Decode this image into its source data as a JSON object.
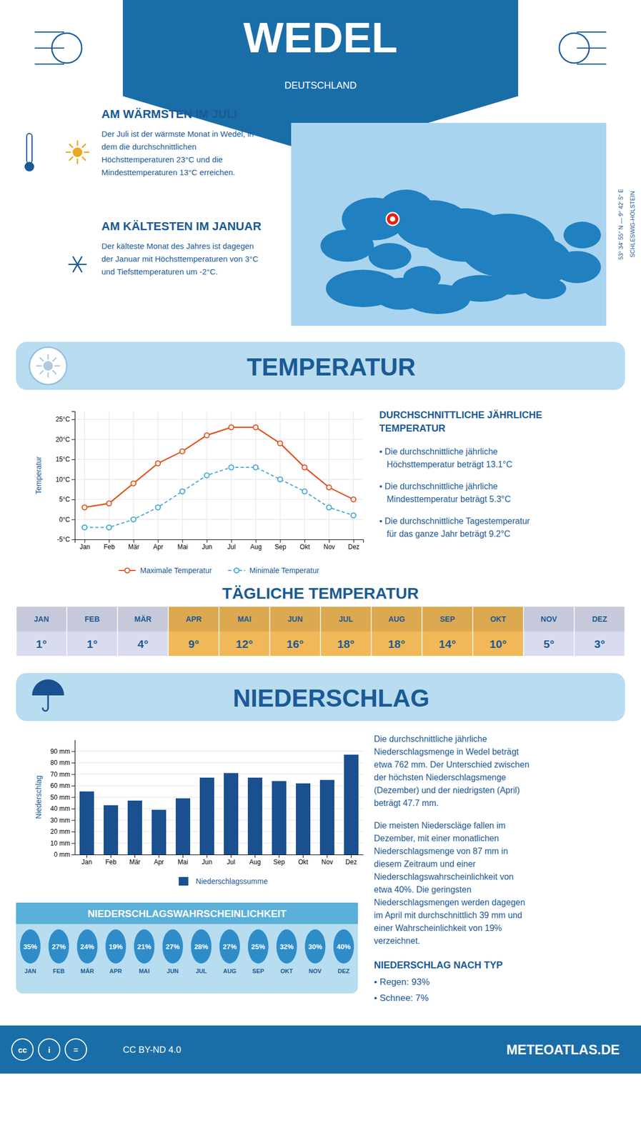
{
  "chart_data": [
    {
      "type": "map",
      "title": "WEDEL",
      "subtitle": "DEUTSCHLAND",
      "annotations": [
        "AM WÄRMSTEN IM JULI",
        "Der Juli ist der wärmste Monat in Wedel, in",
        "dem die durchschnittlichen",
        "Höchsttemperaturen 23°C und die",
        "Mindesttemperaturen 13°C erreichen.",
        "AM KÄLTESTEN IM JANUAR",
        "Der kälteste Monat des Jahres ist dagegen",
        "der Januar mit Höchsttemperaturen von 3°C",
        "und Tiefsttemperaturen um -2°C.",
        "53° 34ʹ 55ʺ N — 9° 42ʹ 5ʺ E",
        "SCHLESWIG-HOLSTEIN",
        "cc",
        "i",
        "=",
        "CC BY-ND 4.0",
        "METEOATLAS.DE"
      ]
    },
    {
      "type": "line",
      "title": "TEMPERATUR",
      "categories": [
        "Jan",
        "Feb",
        "Mär",
        "Apr",
        "Mai",
        "Jun",
        "Jul",
        "Aug",
        "Sep",
        "Okt",
        "Nov",
        "Dez"
      ],
      "series": [
        {
          "name": "Maximale Temperatur",
          "color": "#e05520",
          "marker": "circle",
          "line_style": "solid",
          "values": [
            3,
            4,
            9,
            14,
            17,
            21,
            23,
            23,
            19,
            13,
            8,
            5
          ]
        },
        {
          "name": "Minimale Temperatur",
          "color": "#40aad0",
          "marker": "circle",
          "line_style": "dashed",
          "values": [
            -2,
            -2,
            0,
            3,
            7,
            11,
            13,
            13,
            10,
            7,
            3,
            1
          ]
        }
      ],
      "ylabel": "Temperatur",
      "ylim": [
        -5,
        27
      ],
      "yticks": [
        {
          "value": -5,
          "label": "-5°C"
        },
        {
          "value": 0,
          "label": "0°C"
        },
        {
          "value": 5,
          "label": "5°C"
        },
        {
          "value": 10,
          "label": "10°C"
        },
        {
          "value": 15,
          "label": "15°C"
        },
        {
          "value": 20,
          "label": "20°C"
        },
        {
          "value": 25,
          "label": "25°C"
        }
      ],
      "grid": true,
      "legend": "bottom",
      "annotations": [
        "DURCHSCHNITTLICHE JÄHRLICHE",
        "TEMPERATUR",
        "• Die durchschnittliche jährliche",
        "Höchsttemperatur beträgt 13.1°C",
        "• Die durchschnittliche jährliche",
        "Mindesttemperatur beträgt 5.3°C",
        "• Die durchschnittliche Tagestemperatur",
        "für das ganze Jahr beträgt 9.2°C"
      ]
    },
    {
      "type": "table",
      "title": "TÄGLICHE TEMPERATUR",
      "categories": [
        "JAN",
        "FEB",
        "MÄR",
        "APR",
        "MAI",
        "JUN",
        "JUL",
        "AUG",
        "SEP",
        "OKT",
        "NOV",
        "DEZ"
      ],
      "values": [
        1,
        1,
        4,
        9,
        12,
        16,
        18,
        18,
        14,
        10,
        5,
        3
      ],
      "value_labels": [
        "1°",
        "1°",
        "4°",
        "9°",
        "12°",
        "16°",
        "18°",
        "18°",
        "14°",
        "10°",
        "5°",
        "3°"
      ],
      "colors": [
        "#d8dcee",
        "#d8dcee",
        "#d8dcee",
        "#f0b858",
        "#f0b858",
        "#f0b858",
        "#f0b858",
        "#f0b858",
        "#f0b858",
        "#f0b858",
        "#d8dcee",
        "#d8dcee"
      ],
      "data_labels": true
    },
    {
      "type": "bar",
      "title": "NIEDERSCHLAG",
      "categories": [
        "Jan",
        "Feb",
        "Mär",
        "Apr",
        "Mai",
        "Jun",
        "Jul",
        "Aug",
        "Sep",
        "Okt",
        "Nov",
        "Dez"
      ],
      "series": [
        {
          "name": "Niederschlagssumme",
          "color": "#1a5090",
          "values": [
            55,
            43,
            47,
            39,
            49,
            67,
            71,
            67,
            64,
            62,
            65,
            87
          ]
        }
      ],
      "ylabel": "Niederschlag",
      "ylim": [
        0,
        100
      ],
      "yticks": [
        {
          "value": 0,
          "label": "0 mm"
        },
        {
          "value": 10,
          "label": "10 mm"
        },
        {
          "value": 20,
          "label": "20 mm"
        },
        {
          "value": 30,
          "label": "30 mm"
        },
        {
          "value": 40,
          "label": "40 mm"
        },
        {
          "value": 50,
          "label": "50 mm"
        },
        {
          "value": 60,
          "label": "60 mm"
        },
        {
          "value": 70,
          "label": "70 mm"
        },
        {
          "value": 80,
          "label": "80 mm"
        },
        {
          "value": 90,
          "label": "90 mm"
        }
      ],
      "grid": "y",
      "legend": "bottom",
      "annotations": [
        "Die durchschnittliche jährliche",
        "Niederschlagsmenge in Wedel beträgt",
        "etwa 762 mm. Der Unterschied zwischen",
        "der höchsten Niederschlagsmenge",
        "(Dezember) und der niedrigsten (April)",
        "beträgt 47.7 mm.",
        "Die meisten Niederscläge fallen im",
        "Dezember, mit einer monatlichen",
        "Niederschlagsmenge von 87 mm in",
        "diesem Zeitraum und einer",
        "Niederschlagswahrscheinlichkeit von",
        "etwa 40%. Die geringsten",
        "Niederschlagsmengen werden dagegen",
        "im April mit durchschnittlich 39 mm und",
        "einer Wahrscheinlichkeit von 19%",
        "verzeichnet."
      ]
    },
    {
      "type": "pictogram",
      "title": "NIEDERSCHLAGSWAHRSCHEINLICHKEIT",
      "categories": [
        "JAN",
        "FEB",
        "MÄR",
        "APR",
        "MAI",
        "JUN",
        "JUL",
        "AUG",
        "SEP",
        "OKT",
        "NOV",
        "DEZ"
      ],
      "values": [
        35,
        27,
        24,
        19,
        21,
        27,
        28,
        27,
        25,
        32,
        30,
        40
      ],
      "value_labels": [
        "35%",
        "27%",
        "24%",
        "19%",
        "21%",
        "27%",
        "28%",
        "27%",
        "25%",
        "32%",
        "30%",
        "40%"
      ],
      "color": "#2e8dc8",
      "data_labels": true,
      "annotations": [
        "NIEDERSCHLAG NACH TYP",
        "• Regen: 93%",
        "• Schnee: 7%"
      ]
    }
  ]
}
